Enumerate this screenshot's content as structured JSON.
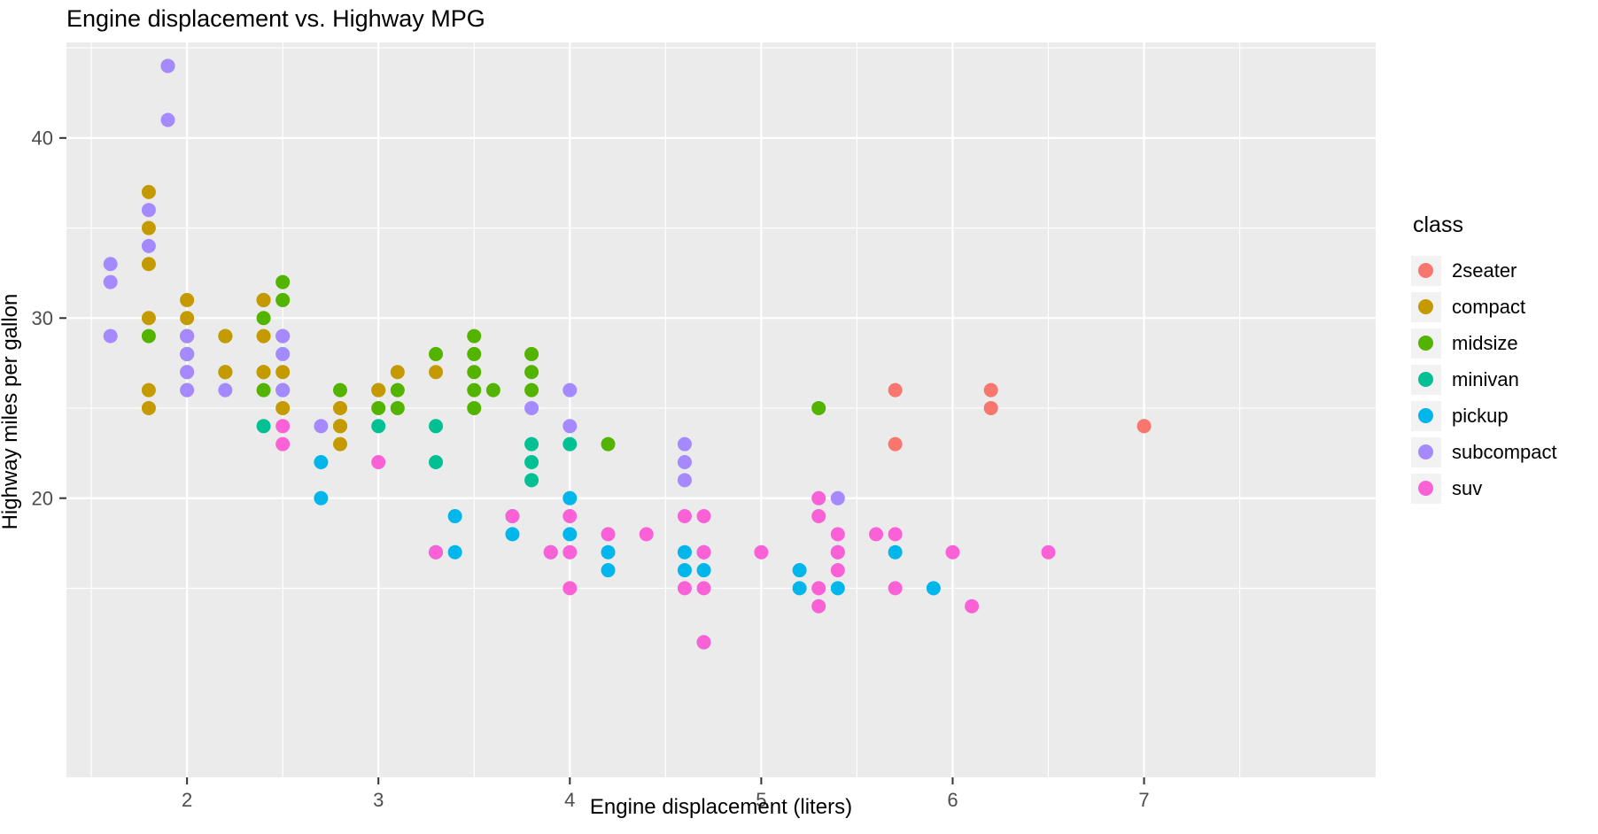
{
  "chart_data": {
    "type": "scatter",
    "title": "Engine displacement vs. Highway MPG",
    "xlabel": "Engine displacement (liters)",
    "ylabel": "Highway miles per gallon",
    "legend_title": "class",
    "legend_position": "right",
    "panel_background": "#EBEBEB",
    "gridline_color": "#FFFFFF",
    "tick_label_color": "#4D4D4D",
    "tick_mark_color": "#333333",
    "legend_key_fill": "#F2F2F2",
    "x_ticks": [
      2,
      3,
      4,
      5,
      6,
      7
    ],
    "y_ticks": [
      20,
      30,
      40
    ],
    "x_minor_ticks": [
      1.5,
      2.5,
      3.5,
      4.5,
      5.5,
      6.5,
      7.5
    ],
    "y_minor_ticks": [
      15,
      25,
      35,
      45
    ],
    "xlim": [
      1.37,
      8.21
    ],
    "ylim": [
      4.5,
      45.3
    ],
    "grid": true,
    "point_radius": 8,
    "draw_order": [
      "2seater",
      "minivan",
      "midsize",
      "compact",
      "pickup",
      "suv",
      "subcompact"
    ],
    "series": [
      {
        "name": "2seater",
        "color": "#F8766D",
        "points": [
          [
            5.7,
            26
          ],
          [
            5.7,
            23
          ],
          [
            6.2,
            26
          ],
          [
            6.2,
            25
          ],
          [
            7.0,
            24
          ]
        ]
      },
      {
        "name": "compact",
        "color": "#C49A00",
        "points": [
          [
            1.8,
            25
          ],
          [
            1.8,
            26
          ],
          [
            1.8,
            30
          ],
          [
            1.8,
            33
          ],
          [
            1.8,
            35
          ],
          [
            1.8,
            37
          ],
          [
            1.9,
            44
          ],
          [
            2.0,
            26
          ],
          [
            2.0,
            27
          ],
          [
            2.0,
            28
          ],
          [
            2.0,
            29
          ],
          [
            2.0,
            30
          ],
          [
            2.0,
            31
          ],
          [
            2.2,
            27
          ],
          [
            2.2,
            29
          ],
          [
            2.4,
            27
          ],
          [
            2.4,
            29
          ],
          [
            2.4,
            31
          ],
          [
            2.5,
            25
          ],
          [
            2.5,
            27
          ],
          [
            2.5,
            29
          ],
          [
            2.8,
            23
          ],
          [
            2.8,
            24
          ],
          [
            2.8,
            25
          ],
          [
            3.0,
            26
          ],
          [
            3.1,
            27
          ],
          [
            3.3,
            27
          ]
        ]
      },
      {
        "name": "midsize",
        "color": "#53B400",
        "points": [
          [
            1.8,
            29
          ],
          [
            2.0,
            28
          ],
          [
            2.0,
            29
          ],
          [
            2.2,
            27
          ],
          [
            2.2,
            29
          ],
          [
            2.4,
            26
          ],
          [
            2.4,
            27
          ],
          [
            2.4,
            30
          ],
          [
            2.4,
            31
          ],
          [
            2.5,
            26
          ],
          [
            2.5,
            31
          ],
          [
            2.5,
            32
          ],
          [
            2.8,
            24
          ],
          [
            2.8,
            26
          ],
          [
            3.0,
            25
          ],
          [
            3.0,
            26
          ],
          [
            3.1,
            25
          ],
          [
            3.1,
            26
          ],
          [
            3.3,
            28
          ],
          [
            3.5,
            25
          ],
          [
            3.5,
            26
          ],
          [
            3.5,
            27
          ],
          [
            3.5,
            28
          ],
          [
            3.5,
            29
          ],
          [
            3.6,
            26
          ],
          [
            3.8,
            26
          ],
          [
            3.8,
            27
          ],
          [
            3.8,
            28
          ],
          [
            4.2,
            23
          ],
          [
            5.3,
            25
          ]
        ]
      },
      {
        "name": "minivan",
        "color": "#00C094",
        "points": [
          [
            2.4,
            24
          ],
          [
            3.0,
            24
          ],
          [
            3.3,
            17
          ],
          [
            3.3,
            22
          ],
          [
            3.3,
            24
          ],
          [
            3.8,
            21
          ],
          [
            3.8,
            22
          ],
          [
            3.8,
            23
          ],
          [
            4.0,
            23
          ]
        ]
      },
      {
        "name": "pickup",
        "color": "#00B6EB",
        "points": [
          [
            2.7,
            20
          ],
          [
            2.7,
            22
          ],
          [
            3.4,
            17
          ],
          [
            3.4,
            19
          ],
          [
            3.7,
            18
          ],
          [
            3.7,
            19
          ],
          [
            3.9,
            17
          ],
          [
            4.0,
            18
          ],
          [
            4.0,
            20
          ],
          [
            4.2,
            16
          ],
          [
            4.2,
            17
          ],
          [
            4.6,
            16
          ],
          [
            4.6,
            17
          ],
          [
            4.7,
            12
          ],
          [
            4.7,
            16
          ],
          [
            4.7,
            17
          ],
          [
            5.2,
            15
          ],
          [
            5.2,
            16
          ],
          [
            5.4,
            15
          ],
          [
            5.4,
            17
          ],
          [
            5.7,
            17
          ],
          [
            5.9,
            15
          ]
        ]
      },
      {
        "name": "subcompact",
        "color": "#A58AFF",
        "points": [
          [
            1.6,
            29
          ],
          [
            1.6,
            32
          ],
          [
            1.6,
            33
          ],
          [
            1.8,
            34
          ],
          [
            1.8,
            36
          ],
          [
            1.9,
            41
          ],
          [
            1.9,
            44
          ],
          [
            2.0,
            26
          ],
          [
            2.0,
            27
          ],
          [
            2.0,
            28
          ],
          [
            2.0,
            29
          ],
          [
            2.2,
            26
          ],
          [
            2.5,
            26
          ],
          [
            2.5,
            28
          ],
          [
            2.5,
            29
          ],
          [
            2.7,
            24
          ],
          [
            3.8,
            25
          ],
          [
            4.0,
            24
          ],
          [
            4.0,
            26
          ],
          [
            4.6,
            21
          ],
          [
            4.6,
            22
          ],
          [
            4.6,
            23
          ],
          [
            5.4,
            20
          ]
        ]
      },
      {
        "name": "suv",
        "color": "#FB61D7",
        "points": [
          [
            2.5,
            23
          ],
          [
            2.5,
            24
          ],
          [
            3.0,
            22
          ],
          [
            3.3,
            17
          ],
          [
            3.7,
            19
          ],
          [
            3.9,
            17
          ],
          [
            4.0,
            15
          ],
          [
            4.0,
            17
          ],
          [
            4.0,
            19
          ],
          [
            4.2,
            18
          ],
          [
            4.4,
            18
          ],
          [
            4.6,
            15
          ],
          [
            4.6,
            19
          ],
          [
            4.7,
            12
          ],
          [
            4.7,
            15
          ],
          [
            4.7,
            17
          ],
          [
            4.7,
            19
          ],
          [
            5.0,
            17
          ],
          [
            5.3,
            14
          ],
          [
            5.3,
            15
          ],
          [
            5.3,
            19
          ],
          [
            5.3,
            20
          ],
          [
            5.4,
            16
          ],
          [
            5.4,
            17
          ],
          [
            5.4,
            18
          ],
          [
            5.6,
            18
          ],
          [
            5.7,
            15
          ],
          [
            5.7,
            18
          ],
          [
            6.0,
            17
          ],
          [
            6.1,
            14
          ],
          [
            6.5,
            17
          ]
        ]
      }
    ]
  }
}
